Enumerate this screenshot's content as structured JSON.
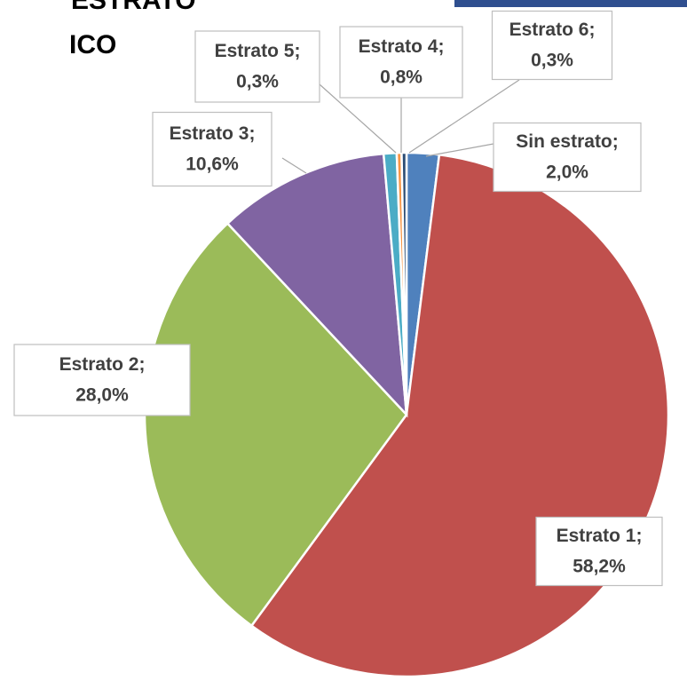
{
  "chart_data": {
    "type": "pie",
    "title_lines": [
      "ESTRATO",
      "ICO"
    ],
    "label_separator": ";",
    "categories": [
      "Sin estrato",
      "Estrato 1",
      "Estrato 2",
      "Estrato 3",
      "Estrato 4",
      "Estrato 5",
      "Estrato 6"
    ],
    "values": [
      2.0,
      58.2,
      28.0,
      10.6,
      0.8,
      0.3,
      0.3
    ],
    "value_labels": [
      "2,0%",
      "58,2%",
      "28,0%",
      "10,6%",
      "0,8%",
      "0,3%",
      "0,3%"
    ],
    "colors": [
      "#4f81bd",
      "#c0504d",
      "#9bbb59",
      "#8064a2",
      "#4bacc6",
      "#f79646",
      "#2c4d75"
    ]
  }
}
